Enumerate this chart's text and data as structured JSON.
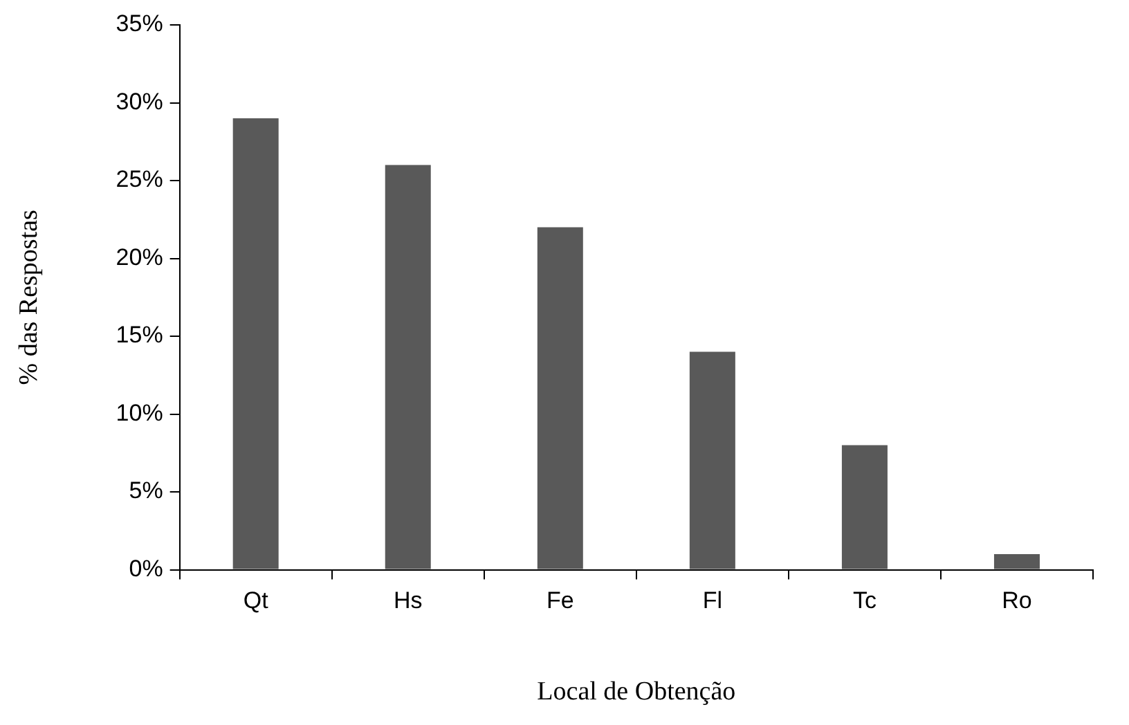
{
  "chart_data": {
    "type": "bar",
    "xlabel": "Local de Obtenção",
    "ylabel": "% das Respostas",
    "categories": [
      "Qt",
      "Hs",
      "Fe",
      "Fl",
      "Tc",
      "Ro"
    ],
    "values": [
      29,
      26,
      22,
      14,
      8,
      1
    ],
    "color": "#595959",
    "ylim": [
      0,
      35
    ],
    "yticks": [
      {
        "value": 0,
        "label": "0%"
      },
      {
        "value": 5,
        "label": "5%"
      },
      {
        "value": 10,
        "label": "10%"
      },
      {
        "value": 15,
        "label": "15%"
      },
      {
        "value": 20,
        "label": "20%"
      },
      {
        "value": 25,
        "label": "25%"
      },
      {
        "value": 30,
        "label": "30%"
      },
      {
        "value": 35,
        "label": "35%"
      }
    ],
    "grid": false,
    "legend": false
  }
}
